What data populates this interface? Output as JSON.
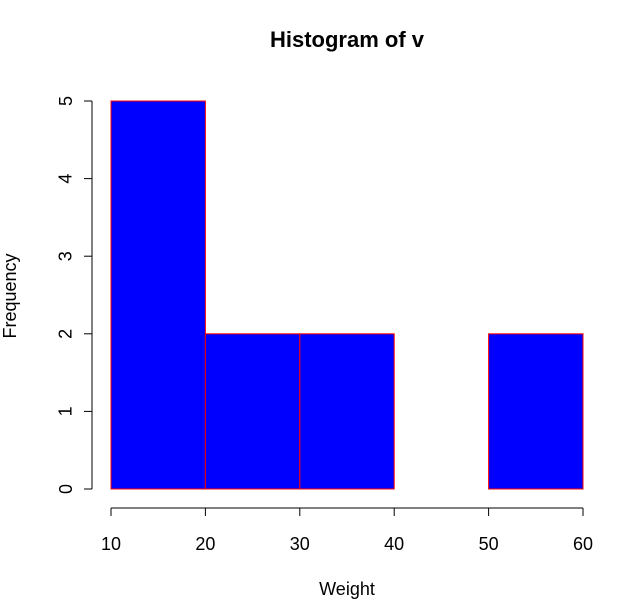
{
  "chart_data": {
    "type": "bar",
    "title": "Histogram of v",
    "xlabel": "Weight",
    "ylabel": "Frequency",
    "bins": [
      {
        "start": 10,
        "end": 20,
        "count": 5
      },
      {
        "start": 20,
        "end": 30,
        "count": 2
      },
      {
        "start": 30,
        "end": 40,
        "count": 2
      },
      {
        "start": 40,
        "end": 50,
        "count": 0
      },
      {
        "start": 50,
        "end": 60,
        "count": 2
      }
    ],
    "x_ticks": [
      10,
      20,
      30,
      40,
      50,
      60
    ],
    "y_ticks": [
      0,
      1,
      2,
      3,
      4,
      5
    ],
    "xlim": [
      10,
      60
    ],
    "ylim": [
      0,
      5
    ],
    "grid": false,
    "bar_fill_color": "#0000ff",
    "bar_border_color": "#ff0000"
  }
}
